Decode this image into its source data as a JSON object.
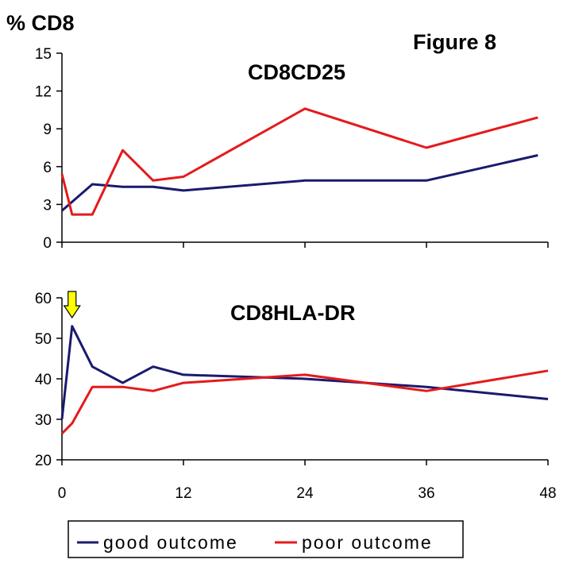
{
  "figure_title": "Figure 8",
  "y_axis_label": "% CD8",
  "chart_data": [
    {
      "type": "line",
      "title": "CD8CD25",
      "xlabel": "",
      "ylabel": "% CD8",
      "xlim": [
        0,
        48
      ],
      "ylim": [
        0,
        15
      ],
      "x_ticks": [
        0,
        12,
        24,
        36,
        48
      ],
      "y_ticks": [
        0,
        3,
        6,
        9,
        12,
        15
      ],
      "x_tick_labels_shown": false,
      "grid": false,
      "series": [
        {
          "name": "good outcome",
          "color": "#1a1a6e",
          "x": [
            0,
            3,
            6,
            9,
            12,
            24,
            36,
            47
          ],
          "y": [
            2.5,
            4.6,
            4.4,
            4.4,
            4.1,
            4.9,
            4.9,
            6.9
          ]
        },
        {
          "name": "poor outcome",
          "color": "#e41a1c",
          "x": [
            0,
            1,
            3,
            6,
            9,
            12,
            24,
            36,
            47
          ],
          "y": [
            5.4,
            2.2,
            2.2,
            7.3,
            4.9,
            5.2,
            10.6,
            7.5,
            9.9
          ]
        }
      ]
    },
    {
      "type": "line",
      "title": "CD8HLA-DR",
      "xlabel": "",
      "ylabel": "",
      "xlim": [
        0,
        48
      ],
      "ylim": [
        20,
        60
      ],
      "x_ticks": [
        0,
        12,
        24,
        36,
        48
      ],
      "y_ticks": [
        20,
        30,
        40,
        50,
        60
      ],
      "x_tick_labels_shown": true,
      "grid": false,
      "annotation": {
        "type": "arrow",
        "color": "#ffff00",
        "points_to_x": 1
      },
      "series": [
        {
          "name": "good outcome",
          "color": "#1a1a6e",
          "x": [
            0,
            1,
            3,
            6,
            9,
            12,
            24,
            36,
            48
          ],
          "y": [
            30,
            53,
            43,
            39,
            43,
            41,
            40,
            38,
            35
          ]
        },
        {
          "name": "poor outcome",
          "color": "#e41a1c",
          "x": [
            0,
            1,
            3,
            6,
            9,
            12,
            24,
            36,
            48
          ],
          "y": [
            26.5,
            29,
            38,
            38,
            37,
            39,
            41,
            37,
            42
          ]
        }
      ]
    }
  ],
  "legend": {
    "placement": "bottom",
    "items": [
      {
        "label": "good outcome",
        "color": "#1a1a6e"
      },
      {
        "label": "poor outcome",
        "color": "#e41a1c"
      }
    ]
  }
}
